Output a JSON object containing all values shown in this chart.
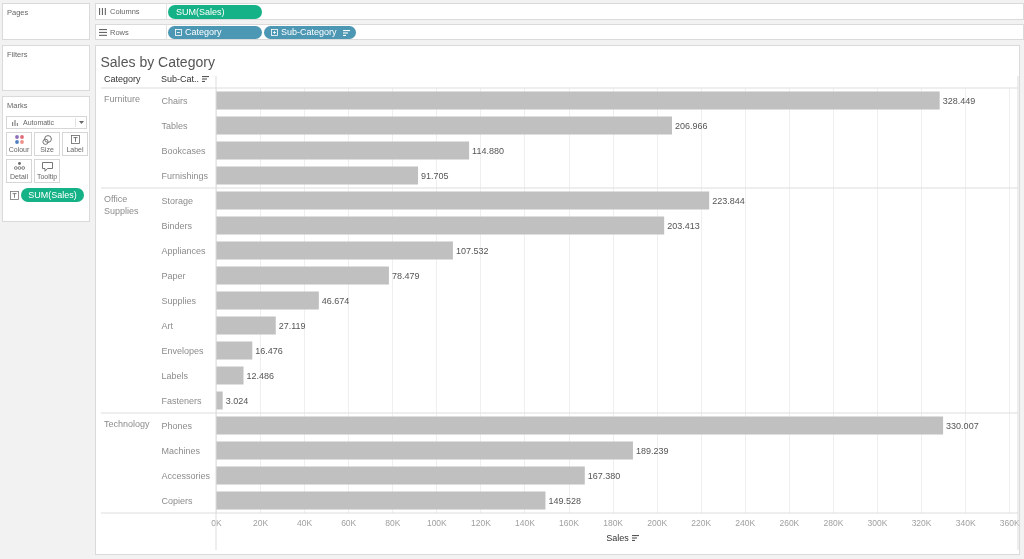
{
  "chart_data": [
    {
      "type": "other",
      "annotations": [
        "Pages",
        "Filters",
        "Marks",
        "Automatic",
        "Colour",
        "Size",
        "Label",
        "Detail",
        "Tooltip",
        "SUM(Sales)",
        "Columns",
        "SUM(Sales)",
        "Rows",
        "Category",
        "Sub-Category"
      ]
    },
    {
      "type": "bar",
      "orientation": "horizontal",
      "title": "Sales by Category",
      "annotations": [
        "Category",
        "Sub-Cat.."
      ],
      "ylabel": "Furniture",
      "categories": [
        "Chairs",
        "Tables",
        "Bookcases",
        "Furnishings"
      ],
      "values": [
        328449,
        206966,
        114880,
        91705
      ],
      "value_labels": [
        "328.449",
        "206.966",
        "114.880",
        "91.705"
      ],
      "color": "#c0c0c0",
      "xlim": [
        0,
        364000
      ],
      "xticks": [
        0,
        20000,
        40000,
        60000,
        80000,
        100000,
        120000,
        140000,
        160000,
        180000,
        200000,
        220000,
        240000,
        260000,
        280000,
        300000,
        320000,
        340000,
        360000
      ],
      "grid": "x",
      "tick_labels": "y"
    },
    {
      "type": "bar",
      "orientation": "horizontal",
      "ylabel": "Office Supplies",
      "categories": [
        "Storage",
        "Binders",
        "Appliances",
        "Paper",
        "Supplies",
        "Art",
        "Envelopes",
        "Labels",
        "Fasteners"
      ],
      "values": [
        223844,
        203413,
        107532,
        78479,
        46674,
        27119,
        16476,
        12486,
        3024
      ],
      "value_labels": [
        "223.844",
        "203.413",
        "107.532",
        "78.479",
        "46.674",
        "27.119",
        "16.476",
        "12.486",
        "3.024"
      ],
      "color": "#c0c0c0",
      "xlim": [
        0,
        364000
      ],
      "xticks": [
        0,
        20000,
        40000,
        60000,
        80000,
        100000,
        120000,
        140000,
        160000,
        180000,
        200000,
        220000,
        240000,
        260000,
        280000,
        300000,
        320000,
        340000,
        360000
      ],
      "grid": "x",
      "tick_labels": "y"
    },
    {
      "type": "bar",
      "orientation": "horizontal",
      "ylabel": "Technology",
      "xlabel": "Sales",
      "categories": [
        "Phones",
        "Machines",
        "Accessories",
        "Copiers"
      ],
      "values": [
        330007,
        189239,
        167380,
        149528
      ],
      "value_labels": [
        "330.007",
        "189.239",
        "167.380",
        "149.528"
      ],
      "color": "#c0c0c0",
      "xlim": [
        0,
        364000
      ],
      "xticks": [
        {
          "value": 0,
          "label": "0K"
        },
        {
          "value": 20000,
          "label": "20K"
        },
        {
          "value": 40000,
          "label": "40K"
        },
        {
          "value": 60000,
          "label": "60K"
        },
        {
          "value": 80000,
          "label": "80K"
        },
        {
          "value": 100000,
          "label": "100K"
        },
        {
          "value": 120000,
          "label": "120K"
        },
        {
          "value": 140000,
          "label": "140K"
        },
        {
          "value": 160000,
          "label": "160K"
        },
        {
          "value": 180000,
          "label": "180K"
        },
        {
          "value": 200000,
          "label": "200K"
        },
        {
          "value": 220000,
          "label": "220K"
        },
        {
          "value": 240000,
          "label": "240K"
        },
        {
          "value": 260000,
          "label": "260K"
        },
        {
          "value": 280000,
          "label": "280K"
        },
        {
          "value": 300000,
          "label": "300K"
        },
        {
          "value": 320000,
          "label": "320K"
        },
        {
          "value": 340000,
          "label": "340K"
        },
        {
          "value": 360000,
          "label": "360K"
        }
      ],
      "grid": "x"
    }
  ]
}
